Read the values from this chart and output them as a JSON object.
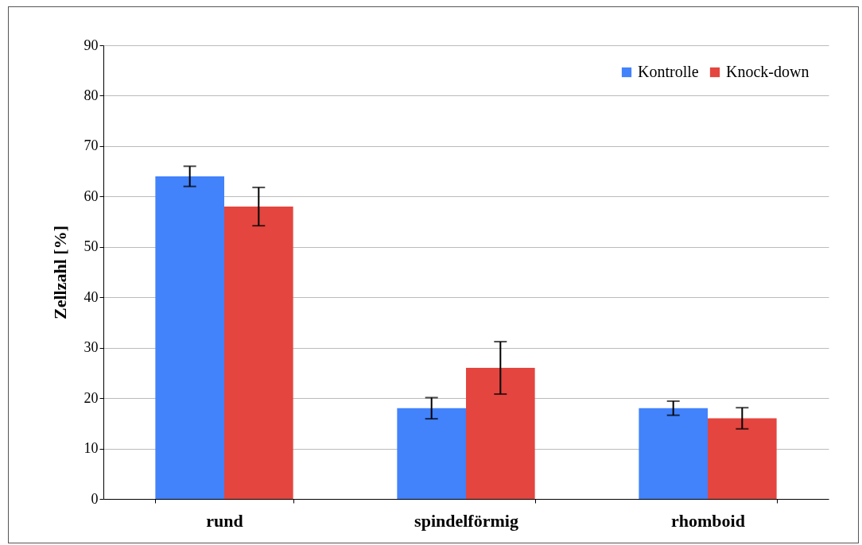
{
  "chart_data": {
    "type": "bar",
    "ylabel": "Zellzahl [%]",
    "categories": [
      "rund",
      "spindelförmig",
      "rhomboid"
    ],
    "series": [
      {
        "name": "Kontrolle",
        "color": "#4282fb",
        "values": [
          64,
          18,
          18
        ],
        "errors": [
          2,
          2.1,
          1.4
        ]
      },
      {
        "name": "Knock-down",
        "color": "#e4453f",
        "values": [
          58,
          26,
          16
        ],
        "errors": [
          3.8,
          5.2,
          2.1
        ]
      }
    ],
    "ylim": [
      0,
      90
    ],
    "yticks": [
      0,
      10,
      20,
      30,
      40,
      50,
      60,
      70,
      80,
      90
    ],
    "grid": "y",
    "legend": "top right"
  }
}
